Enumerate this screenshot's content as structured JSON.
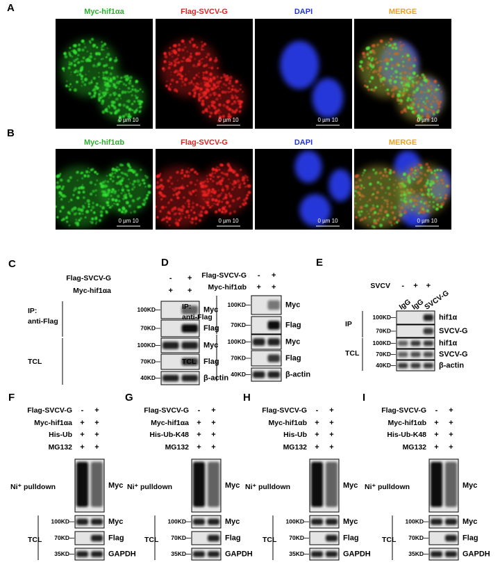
{
  "figure": {
    "rows": [
      {
        "letter": "A",
        "images": [
          {
            "label": "Myc-hif1αa",
            "scale": "0 µm 10"
          },
          {
            "label": "Flag-SVCV-G",
            "scale": "0 µm 10"
          },
          {
            "label": "DAPI",
            "scale": "0 µm 10"
          },
          {
            "label": "MERGE",
            "scale": "0 µm 10"
          }
        ]
      },
      {
        "letter": "B",
        "images": [
          {
            "label": "Myc-hif1αb",
            "scale": "0 µm 10"
          },
          {
            "label": "Flag-SVCV-G",
            "scale": "0 µm 10"
          },
          {
            "label": "DAPI",
            "scale": "0 µm 10"
          },
          {
            "label": "MERGE",
            "scale": "0 µm 10"
          }
        ]
      }
    ],
    "blots": [
      {
        "letter": "C",
        "conditions": [
          {
            "label": "Flag-SVCV-G",
            "lanes": [
              "-",
              "+"
            ]
          },
          {
            "label": "Myc-hif1αa",
            "lanes": [
              "+",
              "+"
            ]
          }
        ],
        "groups": [
          {
            "label": [
              "IP:",
              "anti-Flag"
            ],
            "bands": [
              {
                "size": "100KD",
                "protein": "Myc"
              },
              {
                "size": "70KD",
                "protein": "Flag"
              }
            ]
          },
          {
            "label": [
              "TCL"
            ],
            "bands": [
              {
                "size": "100KD",
                "protein": "Myc"
              },
              {
                "size": "70KD",
                "protein": "Flag"
              },
              {
                "size": "40KD",
                "protein": "β-actin"
              }
            ]
          }
        ]
      },
      {
        "letter": "D",
        "conditions": [
          {
            "label": "Flag-SVCV-G",
            "lanes": [
              "-",
              "+"
            ]
          },
          {
            "label": "Myc-hif1αb",
            "lanes": [
              "+",
              "+"
            ]
          }
        ],
        "groups": [
          {
            "label": [
              "IP:",
              "anti-Flag"
            ],
            "bands": [
              {
                "size": "100KD",
                "protein": "Myc"
              },
              {
                "size": "70KD",
                "protein": "Flag"
              }
            ]
          },
          {
            "label": [
              "TCL"
            ],
            "bands": [
              {
                "size": "100KD",
                "protein": "Myc"
              },
              {
                "size": "70KD",
                "protein": "Flag"
              },
              {
                "size": "40KD",
                "protein": "β-actin"
              }
            ]
          }
        ]
      },
      {
        "letter": "E",
        "conditions": [
          {
            "label": "SVCV",
            "lanes": [
              "-",
              "+",
              "+"
            ]
          }
        ],
        "lane_labels": [
          "IgG",
          "IgG",
          "SVCV-G"
        ],
        "groups": [
          {
            "label": [
              "IP"
            ],
            "bands": [
              {
                "size": "100KD",
                "protein": "hif1α"
              },
              {
                "size": "70KD",
                "protein": "SVCV-G"
              }
            ]
          },
          {
            "label": [
              "TCL"
            ],
            "bands": [
              {
                "size": "100KD",
                "protein": "hif1α"
              },
              {
                "size": "70KD",
                "protein": "SVCV-G"
              },
              {
                "size": "40KD",
                "protein": "β-actin"
              }
            ]
          }
        ]
      },
      {
        "letter": "F",
        "conditions": [
          {
            "label": "Flag-SVCV-G",
            "lanes": [
              "-",
              "+"
            ]
          },
          {
            "label": "Myc-hif1αa",
            "lanes": [
              "+",
              "+"
            ]
          },
          {
            "label": "His-Ub",
            "lanes": [
              "+",
              "+"
            ]
          },
          {
            "label": "MG132",
            "lanes": [
              "+",
              "+"
            ]
          }
        ],
        "groups": [
          {
            "label": [
              "Ni⁺ pulldown"
            ],
            "bands": [
              {
                "protein": "Myc"
              }
            ]
          },
          {
            "label": [
              "TCL"
            ],
            "bands": [
              {
                "size": "100KD",
                "protein": "Myc"
              },
              {
                "size": "70KD",
                "protein": "Flag"
              },
              {
                "size": "35KD",
                "protein": "GAPDH"
              }
            ]
          }
        ]
      },
      {
        "letter": "G",
        "conditions": [
          {
            "label": "Flag-SVCV-G",
            "lanes": [
              "-",
              "+"
            ]
          },
          {
            "label": "Myc-hif1αa",
            "lanes": [
              "+",
              "+"
            ]
          },
          {
            "label": "His-Ub-K48",
            "lanes": [
              "+",
              "+"
            ]
          },
          {
            "label": "MG132",
            "lanes": [
              "+",
              "+"
            ]
          }
        ],
        "groups": [
          {
            "label": [
              "Ni⁺ pulldown"
            ],
            "bands": [
              {
                "protein": "Myc"
              }
            ]
          },
          {
            "label": [
              "TCL"
            ],
            "bands": [
              {
                "size": "100KD",
                "protein": "Myc"
              },
              {
                "size": "70KD",
                "protein": "Flag"
              },
              {
                "size": "35KD",
                "protein": "GAPDH"
              }
            ]
          }
        ]
      },
      {
        "letter": "H",
        "conditions": [
          {
            "label": "Flag-SVCV-G",
            "lanes": [
              "-",
              "+"
            ]
          },
          {
            "label": "Myc-hif1αb",
            "lanes": [
              "+",
              "+"
            ]
          },
          {
            "label": "His-Ub",
            "lanes": [
              "+",
              "+"
            ]
          },
          {
            "label": "MG132",
            "lanes": [
              "+",
              "+"
            ]
          }
        ],
        "groups": [
          {
            "label": [
              "Ni⁺ pulldown"
            ],
            "bands": [
              {
                "protein": "Myc"
              }
            ]
          },
          {
            "label": [
              "TCL"
            ],
            "bands": [
              {
                "size": "100KD",
                "protein": "Myc"
              },
              {
                "size": "70KD",
                "protein": "Flag"
              },
              {
                "size": "35KD",
                "protein": "GAPDH"
              }
            ]
          }
        ]
      },
      {
        "letter": "I",
        "conditions": [
          {
            "label": "Flag-SVCV-G",
            "lanes": [
              "-",
              "+"
            ]
          },
          {
            "label": "Myc-hif1αb",
            "lanes": [
              "+",
              "+"
            ]
          },
          {
            "label": "His-Ub-K48",
            "lanes": [
              "+",
              "+"
            ]
          },
          {
            "label": "MG132",
            "lanes": [
              "+",
              "+"
            ]
          }
        ],
        "groups": [
          {
            "label": [
              "Ni⁺ pulldown"
            ],
            "bands": [
              {
                "protein": "Myc"
              }
            ]
          },
          {
            "label": [
              "TCL"
            ],
            "bands": [
              {
                "size": "100KD",
                "protein": "Myc"
              },
              {
                "size": "70KD",
                "protein": "Flag"
              },
              {
                "size": "35KD",
                "protein": "GAPDH"
              }
            ]
          }
        ]
      }
    ]
  }
}
